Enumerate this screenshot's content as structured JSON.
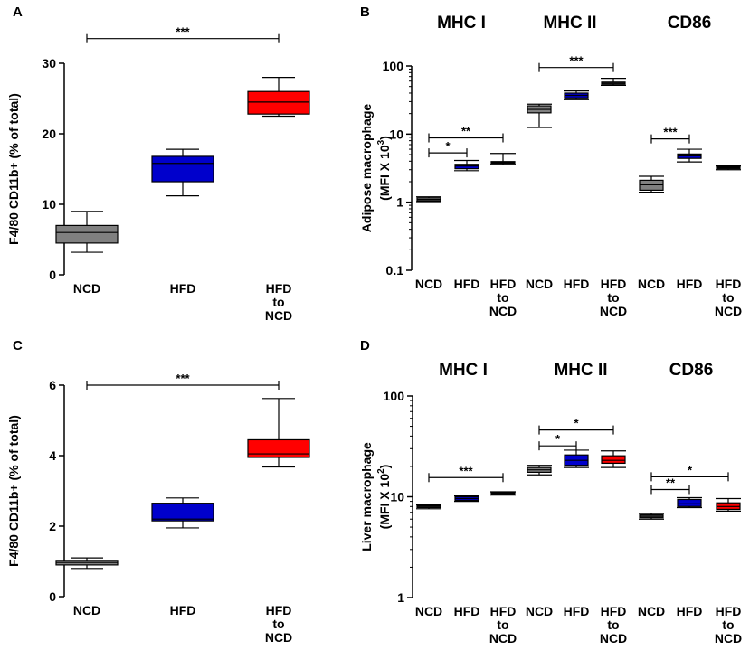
{
  "chart_data": [
    {
      "id": "A",
      "letter": "A",
      "type": "box",
      "scale": "linear",
      "ylabel": "F4/80 CD11b+ (% of total)",
      "ylim": [
        0,
        30
      ],
      "yticks": [
        0,
        10,
        20,
        30
      ],
      "boxes": [
        {
          "label": "NCD",
          "color": "#808080",
          "min": 3.2,
          "q1": 4.5,
          "median": 6.0,
          "q3": 7.0,
          "max": 9.0
        },
        {
          "label": "HFD",
          "color": "#0000cc",
          "min": 11.2,
          "q1": 13.2,
          "median": 15.8,
          "q3": 16.8,
          "max": 17.8
        },
        {
          "label": "HFD to NCD",
          "color": "#ff0000",
          "min": 22.5,
          "q1": 22.8,
          "median": 24.5,
          "q3": 26.0,
          "max": 28.0
        }
      ],
      "significance": [
        {
          "from": 0,
          "to": 2,
          "label": "***",
          "y": 33.5
        }
      ]
    },
    {
      "id": "B",
      "letter": "B",
      "type": "box",
      "scale": "log",
      "ylabel_line1": "Adipose macrophage",
      "ylabel_line2": "(MFI X 10",
      "ylabel_sup": "3",
      "ylabel_end": ")",
      "ylim": [
        0.1,
        100
      ],
      "yticks": [
        0.1,
        1,
        10,
        100
      ],
      "ytick_labels": [
        "0.1",
        "1",
        "10",
        "100"
      ],
      "groups": [
        "MHC I",
        "MHC II",
        "CD86"
      ],
      "boxes": [
        {
          "label": "NCD",
          "color": "#808080",
          "min": 1.02,
          "q1": 1.05,
          "median": 1.1,
          "q3": 1.16,
          "max": 1.2
        },
        {
          "label": "HFD",
          "color": "#0000cc",
          "min": 2.9,
          "q1": 3.1,
          "median": 3.4,
          "q3": 3.6,
          "max": 4.1
        },
        {
          "label": "HFD to NCD",
          "color": "#ffffff",
          "min": 3.6,
          "q1": 3.75,
          "median": 3.85,
          "q3": 3.95,
          "max": 5.2
        },
        {
          "label": "NCD",
          "color": "#808080",
          "min": 12.5,
          "q1": 20.5,
          "median": 23,
          "q3": 26,
          "max": 27.5
        },
        {
          "label": "HFD",
          "color": "#0000cc",
          "min": 32,
          "q1": 34,
          "median": 37,
          "q3": 40,
          "max": 43
        },
        {
          "label": "HFD to NCD",
          "color": "#ffffff",
          "min": 52,
          "q1": 54,
          "median": 56,
          "q3": 58,
          "max": 66
        },
        {
          "label": "NCD",
          "color": "#808080",
          "min": 1.4,
          "q1": 1.5,
          "median": 1.8,
          "q3": 2.1,
          "max": 2.4
        },
        {
          "label": "HFD",
          "color": "#0000cc",
          "min": 3.9,
          "q1": 4.4,
          "median": 4.8,
          "q3": 5.1,
          "max": 6.0
        },
        {
          "label": "HFD to NCD",
          "color": "#ffffff",
          "min": 3.0,
          "q1": 3.1,
          "median": 3.2,
          "q3": 3.3,
          "max": 3.4
        }
      ],
      "significance": [
        {
          "from": 0,
          "to": 1,
          "label": "*",
          "y": 5.3
        },
        {
          "from": 0,
          "to": 2,
          "label": "**",
          "y": 8.8
        },
        {
          "from": 3,
          "to": 5,
          "label": "***",
          "y": 95
        },
        {
          "from": 6,
          "to": 7,
          "label": "***",
          "y": 8.5
        }
      ]
    },
    {
      "id": "C",
      "letter": "C",
      "type": "box",
      "scale": "linear",
      "ylabel": "F4/80 CD11b+ (% of total)",
      "ylim": [
        0,
        6
      ],
      "yticks": [
        0,
        2,
        4,
        6
      ],
      "boxes": [
        {
          "label": "NCD",
          "color": "#808080",
          "min": 0.8,
          "q1": 0.9,
          "median": 0.97,
          "q3": 1.03,
          "max": 1.1
        },
        {
          "label": "HFD",
          "color": "#0000cc",
          "min": 1.95,
          "q1": 2.15,
          "median": 2.2,
          "q3": 2.65,
          "max": 2.8
        },
        {
          "label": "HFD to NCD",
          "color": "#ff0000",
          "min": 3.68,
          "q1": 3.95,
          "median": 4.05,
          "q3": 4.45,
          "max": 5.62
        }
      ],
      "significance": [
        {
          "from": 0,
          "to": 2,
          "label": "***",
          "y": 6.0
        }
      ]
    },
    {
      "id": "D",
      "letter": "D",
      "type": "box",
      "scale": "log",
      "ylabel_line1": "Liver macrophage",
      "ylabel_line2": "(MFI X 10",
      "ylabel_sup": "2",
      "ylabel_end": ")",
      "ylim": [
        1,
        100
      ],
      "yticks": [
        1,
        10,
        100
      ],
      "ytick_labels": [
        "1",
        "10",
        "100"
      ],
      "groups": [
        "MHC I",
        "MHC II",
        "CD86"
      ],
      "boxes": [
        {
          "label": "NCD",
          "color": "#808080",
          "min": 7.6,
          "q1": 7.8,
          "median": 8.0,
          "q3": 8.15,
          "max": 8.3
        },
        {
          "label": "HFD",
          "color": "#0000cc",
          "min": 9.0,
          "q1": 9.2,
          "median": 9.6,
          "q3": 10.0,
          "max": 10.2
        },
        {
          "label": "HFD to NCD",
          "color": "#ffffff",
          "min": 10.4,
          "q1": 10.6,
          "median": 10.8,
          "q3": 11.0,
          "max": 11.2
        },
        {
          "label": "NCD",
          "color": "#808080",
          "min": 16.5,
          "q1": 17.5,
          "median": 18.5,
          "q3": 19.5,
          "max": 20.5
        },
        {
          "label": "HFD",
          "color": "#0000cc",
          "min": 19.5,
          "q1": 20.5,
          "median": 23,
          "q3": 26,
          "max": 29
        },
        {
          "label": "HFD to NCD",
          "color": "#ff0000",
          "min": 19.5,
          "q1": 21.5,
          "median": 23,
          "q3": 25.5,
          "max": 28.5
        },
        {
          "label": "NCD",
          "color": "#808080",
          "min": 6.0,
          "q1": 6.2,
          "median": 6.4,
          "q3": 6.6,
          "max": 6.8
        },
        {
          "label": "HFD",
          "color": "#0000cc",
          "min": 7.8,
          "q1": 8.0,
          "median": 8.5,
          "q3": 9.4,
          "max": 9.8
        },
        {
          "label": "HFD to NCD",
          "color": "#ff0000",
          "min": 7.2,
          "q1": 7.5,
          "median": 8.0,
          "q3": 8.7,
          "max": 9.6
        }
      ],
      "significance": [
        {
          "from": 0,
          "to": 2,
          "label": "***",
          "y": 15.5
        },
        {
          "from": 3,
          "to": 4,
          "label": "*",
          "y": 32
        },
        {
          "from": 3,
          "to": 5,
          "label": "*",
          "y": 46
        },
        {
          "from": 6,
          "to": 7,
          "label": "**",
          "y": 11.8
        },
        {
          "from": 6,
          "to": 8,
          "label": "*",
          "y": 15.8
        }
      ]
    }
  ]
}
